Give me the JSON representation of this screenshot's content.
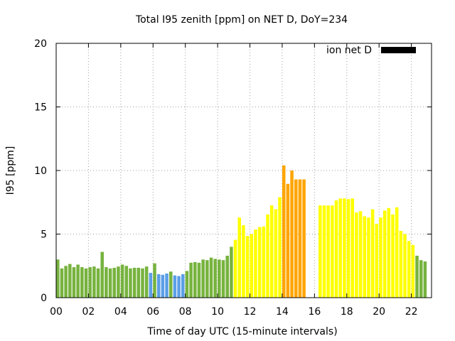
{
  "chart_data": {
    "type": "bar",
    "title": "Total I95 zenith [ppm] on NET D, DoY=234",
    "xlabel": "Time of day UTC (15-minute intervals)",
    "ylabel": "I95 [ppm]",
    "xlim": [
      0,
      23.25
    ],
    "ylim": [
      0,
      20
    ],
    "xticks": [
      0,
      2,
      4,
      6,
      8,
      10,
      12,
      14,
      16,
      18,
      20,
      22
    ],
    "xtick_labels": [
      "00",
      "02",
      "04",
      "06",
      "08",
      "10",
      "12",
      "14",
      "16",
      "18",
      "20",
      "22"
    ],
    "yticks": [
      0,
      5,
      10,
      15,
      20
    ],
    "ytick_labels": [
      "0",
      "5",
      "10",
      "15",
      "20"
    ],
    "grid": true,
    "legend": {
      "label": "ion net D",
      "color": "#000000",
      "placement": "top-right"
    },
    "bar_width_hours": 0.2,
    "bars": [
      {
        "x": 0.0,
        "y": 3.0,
        "color": "#77b33f"
      },
      {
        "x": 0.25,
        "y": 2.3,
        "color": "#77b33f"
      },
      {
        "x": 0.5,
        "y": 2.5,
        "color": "#77b33f"
      },
      {
        "x": 0.75,
        "y": 2.65,
        "color": "#77b33f"
      },
      {
        "x": 1.0,
        "y": 2.4,
        "color": "#77b33f"
      },
      {
        "x": 1.25,
        "y": 2.6,
        "color": "#77b33f"
      },
      {
        "x": 1.5,
        "y": 2.4,
        "color": "#77b33f"
      },
      {
        "x": 1.75,
        "y": 2.3,
        "color": "#77b33f"
      },
      {
        "x": 2.0,
        "y": 2.4,
        "color": "#77b33f"
      },
      {
        "x": 2.25,
        "y": 2.45,
        "color": "#77b33f"
      },
      {
        "x": 2.5,
        "y": 2.3,
        "color": "#77b33f"
      },
      {
        "x": 2.75,
        "y": 3.6,
        "color": "#77b33f"
      },
      {
        "x": 3.0,
        "y": 2.4,
        "color": "#77b33f"
      },
      {
        "x": 3.25,
        "y": 2.3,
        "color": "#77b33f"
      },
      {
        "x": 3.5,
        "y": 2.35,
        "color": "#77b33f"
      },
      {
        "x": 3.75,
        "y": 2.45,
        "color": "#77b33f"
      },
      {
        "x": 4.0,
        "y": 2.6,
        "color": "#77b33f"
      },
      {
        "x": 4.25,
        "y": 2.5,
        "color": "#77b33f"
      },
      {
        "x": 4.5,
        "y": 2.3,
        "color": "#77b33f"
      },
      {
        "x": 4.75,
        "y": 2.35,
        "color": "#77b33f"
      },
      {
        "x": 5.0,
        "y": 2.35,
        "color": "#77b33f"
      },
      {
        "x": 5.25,
        "y": 2.3,
        "color": "#77b33f"
      },
      {
        "x": 5.5,
        "y": 2.45,
        "color": "#77b33f"
      },
      {
        "x": 5.75,
        "y": 1.95,
        "color": "#5b9ee6"
      },
      {
        "x": 6.0,
        "y": 2.7,
        "color": "#77b33f"
      },
      {
        "x": 6.25,
        "y": 1.85,
        "color": "#5b9ee6"
      },
      {
        "x": 6.5,
        "y": 1.8,
        "color": "#5b9ee6"
      },
      {
        "x": 6.75,
        "y": 1.9,
        "color": "#5b9ee6"
      },
      {
        "x": 7.0,
        "y": 2.05,
        "color": "#77b33f"
      },
      {
        "x": 7.25,
        "y": 1.75,
        "color": "#5b9ee6"
      },
      {
        "x": 7.5,
        "y": 1.7,
        "color": "#5b9ee6"
      },
      {
        "x": 7.75,
        "y": 1.85,
        "color": "#5b9ee6"
      },
      {
        "x": 8.0,
        "y": 2.1,
        "color": "#77b33f"
      },
      {
        "x": 8.25,
        "y": 2.75,
        "color": "#77b33f"
      },
      {
        "x": 8.5,
        "y": 2.8,
        "color": "#77b33f"
      },
      {
        "x": 8.75,
        "y": 2.75,
        "color": "#77b33f"
      },
      {
        "x": 9.0,
        "y": 3.0,
        "color": "#77b33f"
      },
      {
        "x": 9.25,
        "y": 2.95,
        "color": "#77b33f"
      },
      {
        "x": 9.5,
        "y": 3.15,
        "color": "#77b33f"
      },
      {
        "x": 9.75,
        "y": 3.05,
        "color": "#77b33f"
      },
      {
        "x": 10.0,
        "y": 3.0,
        "color": "#77b33f"
      },
      {
        "x": 10.25,
        "y": 2.95,
        "color": "#77b33f"
      },
      {
        "x": 10.5,
        "y": 3.3,
        "color": "#77b33f"
      },
      {
        "x": 10.75,
        "y": 4.0,
        "color": "#77b33f"
      },
      {
        "x": 11.0,
        "y": 4.55,
        "color": "#ffff00"
      },
      {
        "x": 11.25,
        "y": 6.3,
        "color": "#ffff00"
      },
      {
        "x": 11.5,
        "y": 5.7,
        "color": "#ffff00"
      },
      {
        "x": 11.75,
        "y": 4.85,
        "color": "#ffff00"
      },
      {
        "x": 12.0,
        "y": 5.0,
        "color": "#ffff00"
      },
      {
        "x": 12.25,
        "y": 5.35,
        "color": "#ffff00"
      },
      {
        "x": 12.5,
        "y": 5.55,
        "color": "#ffff00"
      },
      {
        "x": 12.75,
        "y": 5.6,
        "color": "#ffff00"
      },
      {
        "x": 13.0,
        "y": 6.55,
        "color": "#ffff00"
      },
      {
        "x": 13.25,
        "y": 7.25,
        "color": "#ffff00"
      },
      {
        "x": 13.5,
        "y": 6.95,
        "color": "#ffff00"
      },
      {
        "x": 13.75,
        "y": 7.9,
        "color": "#ffff00"
      },
      {
        "x": 14.0,
        "y": 10.4,
        "color": "#ffa500"
      },
      {
        "x": 14.25,
        "y": 8.95,
        "color": "#ffa500"
      },
      {
        "x": 14.5,
        "y": 10.0,
        "color": "#ffa500"
      },
      {
        "x": 14.75,
        "y": 9.3,
        "color": "#ffa500"
      },
      {
        "x": 15.0,
        "y": 9.3,
        "color": "#ffa500"
      },
      {
        "x": 15.25,
        "y": 9.3,
        "color": "#ffa500"
      },
      {
        "x": 16.25,
        "y": 7.25,
        "color": "#ffff00"
      },
      {
        "x": 16.5,
        "y": 7.25,
        "color": "#ffff00"
      },
      {
        "x": 16.75,
        "y": 7.25,
        "color": "#ffff00"
      },
      {
        "x": 17.0,
        "y": 7.25,
        "color": "#ffff00"
      },
      {
        "x": 17.25,
        "y": 7.65,
        "color": "#ffff00"
      },
      {
        "x": 17.5,
        "y": 7.8,
        "color": "#ffff00"
      },
      {
        "x": 17.75,
        "y": 7.8,
        "color": "#ffff00"
      },
      {
        "x": 18.0,
        "y": 7.75,
        "color": "#ffff00"
      },
      {
        "x": 18.25,
        "y": 7.8,
        "color": "#ffff00"
      },
      {
        "x": 18.5,
        "y": 6.7,
        "color": "#ffff00"
      },
      {
        "x": 18.75,
        "y": 6.8,
        "color": "#ffff00"
      },
      {
        "x": 19.0,
        "y": 6.4,
        "color": "#ffff00"
      },
      {
        "x": 19.25,
        "y": 6.3,
        "color": "#ffff00"
      },
      {
        "x": 19.5,
        "y": 6.95,
        "color": "#ffff00"
      },
      {
        "x": 19.75,
        "y": 5.8,
        "color": "#ffff00"
      },
      {
        "x": 20.0,
        "y": 6.3,
        "color": "#ffff00"
      },
      {
        "x": 20.25,
        "y": 6.85,
        "color": "#ffff00"
      },
      {
        "x": 20.5,
        "y": 7.05,
        "color": "#ffff00"
      },
      {
        "x": 20.75,
        "y": 6.55,
        "color": "#ffff00"
      },
      {
        "x": 21.0,
        "y": 7.1,
        "color": "#ffff00"
      },
      {
        "x": 21.25,
        "y": 5.25,
        "color": "#ffff00"
      },
      {
        "x": 21.5,
        "y": 5.0,
        "color": "#ffff00"
      },
      {
        "x": 21.75,
        "y": 4.45,
        "color": "#ffff00"
      },
      {
        "x": 22.0,
        "y": 4.15,
        "color": "#ffff00"
      },
      {
        "x": 22.25,
        "y": 3.3,
        "color": "#77b33f"
      },
      {
        "x": 22.5,
        "y": 2.95,
        "color": "#77b33f"
      },
      {
        "x": 22.75,
        "y": 2.85,
        "color": "#77b33f"
      }
    ]
  }
}
